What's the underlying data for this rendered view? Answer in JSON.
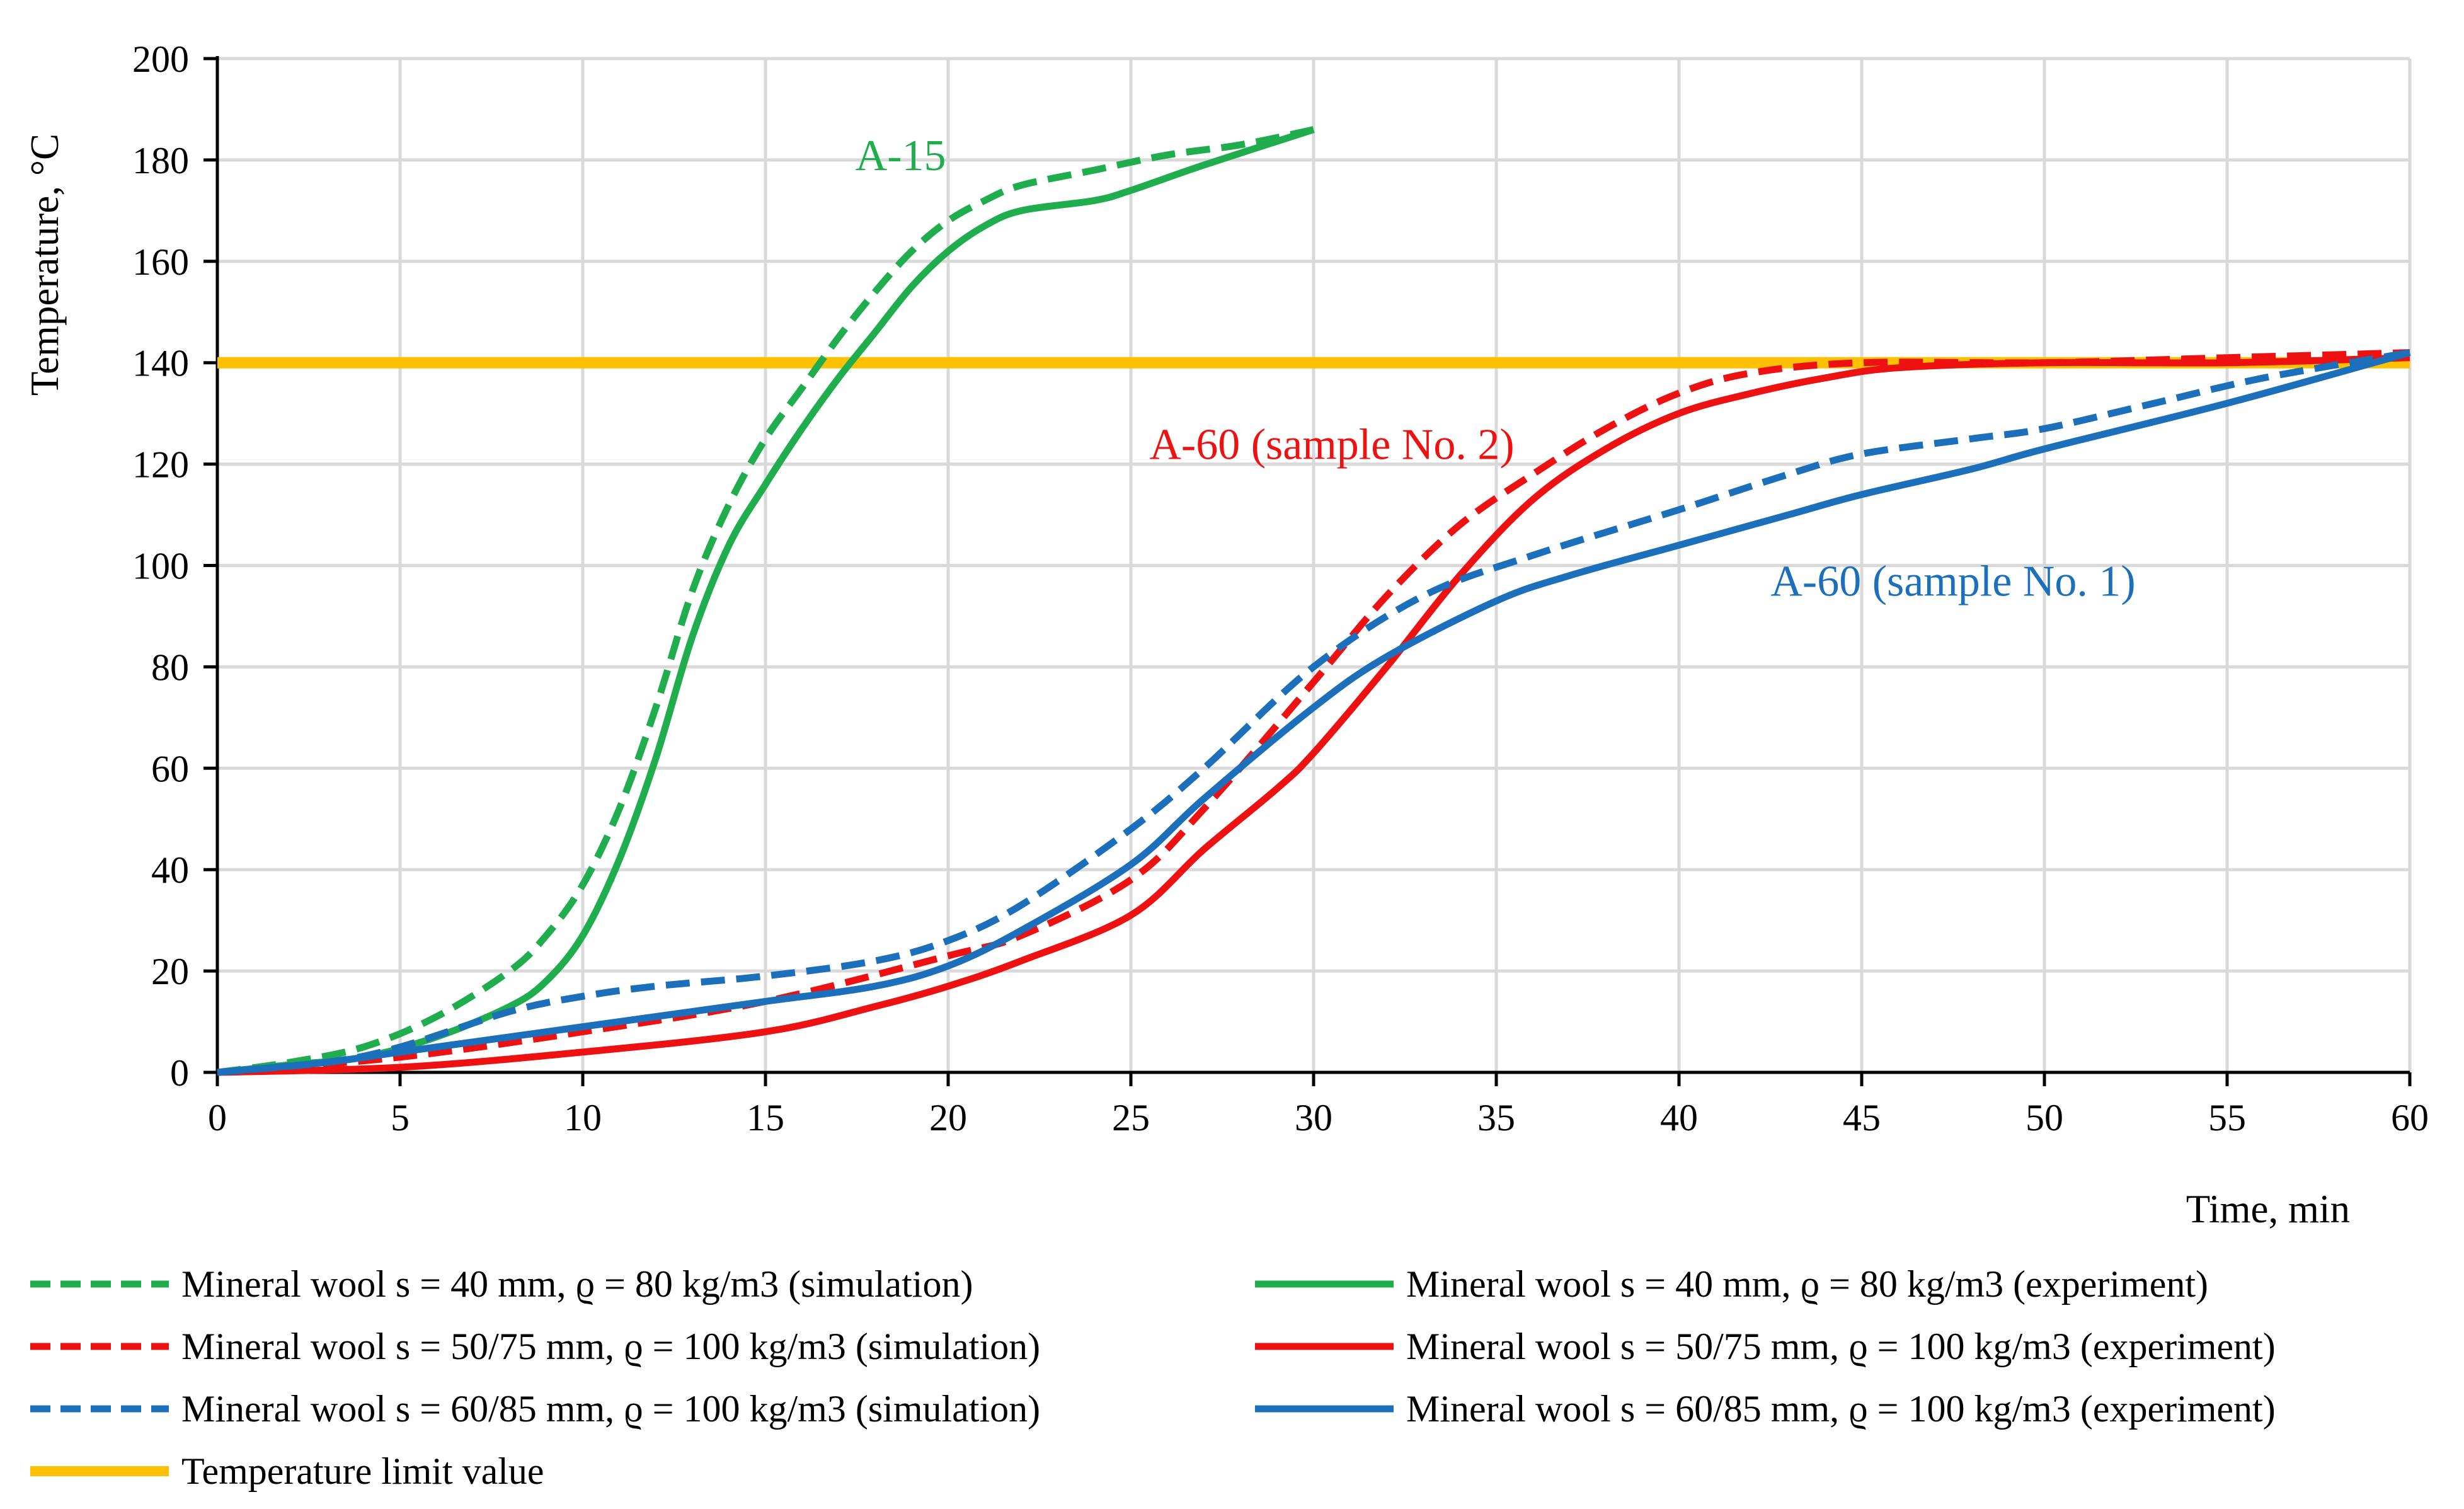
{
  "chart_data": {
    "type": "line",
    "title": "",
    "xlabel": "Time, min",
    "ylabel": "Temperature, °C",
    "xlim": [
      0,
      60
    ],
    "ylim": [
      0,
      200
    ],
    "x_ticks": [
      0,
      5,
      10,
      15,
      20,
      25,
      30,
      35,
      40,
      45,
      50,
      55,
      60
    ],
    "y_ticks": [
      0,
      20,
      40,
      60,
      80,
      100,
      120,
      140,
      160,
      180,
      200
    ],
    "x_tick_labels": [
      "0",
      "5",
      "10",
      "15",
      "20",
      "25",
      "30",
      "35",
      "40",
      "45",
      "50",
      "55",
      "60"
    ],
    "y_tick_labels": [
      "0",
      "20",
      "40",
      "60",
      "80",
      "100",
      "120",
      "140",
      "160",
      "180",
      "200"
    ],
    "grid": true,
    "legend_position": "bottom",
    "series": [
      {
        "name": "Mineral wool s = 40 mm, ϱ = 80 kg/m3 (simulation)",
        "color": "#1fad4e",
        "style": "dashed",
        "points": [
          [
            0,
            0
          ],
          [
            2,
            2
          ],
          [
            4,
            5
          ],
          [
            6,
            11
          ],
          [
            8,
            20
          ],
          [
            9,
            27
          ],
          [
            10,
            37
          ],
          [
            11,
            52
          ],
          [
            12,
            72
          ],
          [
            13,
            95
          ],
          [
            14,
            112
          ],
          [
            15,
            125
          ],
          [
            16,
            135
          ],
          [
            17,
            145
          ],
          [
            18,
            154
          ],
          [
            19,
            162
          ],
          [
            20,
            168
          ],
          [
            21,
            172
          ],
          [
            22,
            175
          ],
          [
            24,
            178
          ],
          [
            26,
            181
          ],
          [
            28,
            183
          ],
          [
            30,
            186
          ]
        ]
      },
      {
        "name": "Mineral wool s = 40 mm, ϱ = 80 kg/m3 (experiment)",
        "color": "#1fad4e",
        "style": "solid",
        "points": [
          [
            0,
            0
          ],
          [
            2,
            1.5
          ],
          [
            4,
            3
          ],
          [
            6,
            7
          ],
          [
            8,
            13
          ],
          [
            9,
            18
          ],
          [
            10,
            27
          ],
          [
            11,
            42
          ],
          [
            12,
            62
          ],
          [
            13,
            86
          ],
          [
            14,
            104
          ],
          [
            15,
            116
          ],
          [
            16,
            127
          ],
          [
            17,
            137
          ],
          [
            18,
            146
          ],
          [
            19,
            155
          ],
          [
            20,
            162
          ],
          [
            21,
            167
          ],
          [
            22,
            170
          ],
          [
            24,
            172
          ],
          [
            25,
            174
          ],
          [
            27,
            179
          ],
          [
            30,
            186
          ]
        ]
      },
      {
        "name": "Mineral wool s = 50/75 mm, ϱ = 100 kg/m3 (simulation)",
        "color": "#ee1111",
        "style": "dashed",
        "points": [
          [
            0,
            0
          ],
          [
            5,
            3
          ],
          [
            10,
            8
          ],
          [
            15,
            14
          ],
          [
            20,
            23
          ],
          [
            22,
            27
          ],
          [
            25,
            38
          ],
          [
            27,
            52
          ],
          [
            30,
            77
          ],
          [
            32,
            94
          ],
          [
            34,
            108
          ],
          [
            36,
            118
          ],
          [
            38,
            127
          ],
          [
            40,
            134
          ],
          [
            42,
            138
          ],
          [
            45,
            140
          ],
          [
            50,
            140
          ],
          [
            55,
            141
          ],
          [
            60,
            142
          ]
        ]
      },
      {
        "name": "Mineral wool s = 50/75 mm, ϱ = 100 kg/m3 (experiment)",
        "color": "#ee1111",
        "style": "solid",
        "points": [
          [
            0,
            0
          ],
          [
            5,
            1
          ],
          [
            10,
            4
          ],
          [
            15,
            8
          ],
          [
            18,
            13
          ],
          [
            20,
            17
          ],
          [
            22,
            22
          ],
          [
            25,
            31
          ],
          [
            27,
            44
          ],
          [
            29,
            56
          ],
          [
            30,
            63
          ],
          [
            32,
            80
          ],
          [
            34,
            98
          ],
          [
            36,
            113
          ],
          [
            38,
            123
          ],
          [
            40,
            130
          ],
          [
            42,
            134
          ],
          [
            44,
            137
          ],
          [
            46,
            139
          ],
          [
            50,
            140
          ],
          [
            55,
            140
          ],
          [
            60,
            141
          ]
        ]
      },
      {
        "name": "Mineral wool s = 60/85 mm, ϱ = 100 kg/m3 (simulation)",
        "color": "#1b6fbb",
        "style": "dashed",
        "points": [
          [
            0,
            0
          ],
          [
            3,
            2
          ],
          [
            5,
            5
          ],
          [
            8,
            12
          ],
          [
            10,
            15
          ],
          [
            12,
            17
          ],
          [
            15,
            19
          ],
          [
            18,
            22
          ],
          [
            20,
            26
          ],
          [
            22,
            33
          ],
          [
            25,
            48
          ],
          [
            27,
            60
          ],
          [
            30,
            80
          ],
          [
            33,
            94
          ],
          [
            36,
            102
          ],
          [
            40,
            111
          ],
          [
            43,
            118
          ],
          [
            45,
            122
          ],
          [
            48,
            125
          ],
          [
            50,
            127
          ],
          [
            53,
            132
          ],
          [
            56,
            137
          ],
          [
            60,
            142
          ]
        ]
      },
      {
        "name": "Mineral wool s = 60/85 mm, ϱ = 100 kg/m3 (experiment)",
        "color": "#1b6fbb",
        "style": "solid",
        "points": [
          [
            0,
            0
          ],
          [
            3,
            2
          ],
          [
            5,
            4
          ],
          [
            8,
            7
          ],
          [
            10,
            9
          ],
          [
            12,
            11
          ],
          [
            15,
            14
          ],
          [
            18,
            17
          ],
          [
            20,
            21
          ],
          [
            22,
            28
          ],
          [
            25,
            41
          ],
          [
            27,
            54
          ],
          [
            30,
            72
          ],
          [
            32,
            82
          ],
          [
            35,
            93
          ],
          [
            37,
            98
          ],
          [
            40,
            104
          ],
          [
            43,
            110
          ],
          [
            45,
            114
          ],
          [
            48,
            119
          ],
          [
            50,
            123
          ],
          [
            55,
            132
          ],
          [
            60,
            142
          ]
        ]
      },
      {
        "name": "Temperature limit value",
        "color": "#ffc000",
        "style": "solid",
        "points": [
          [
            0,
            140
          ],
          [
            60,
            140
          ]
        ]
      }
    ],
    "annotations": [
      {
        "text": "A-15",
        "x": 18.7,
        "y": 181,
        "color": "#1fad4e"
      },
      {
        "text": "A-60 (sample No. 2)",
        "x": 30.5,
        "y": 124,
        "color": "#ee1111"
      },
      {
        "text": "A-60 (sample No. 1)",
        "x": 47.5,
        "y": 97,
        "color": "#1b6fbb"
      }
    ]
  }
}
